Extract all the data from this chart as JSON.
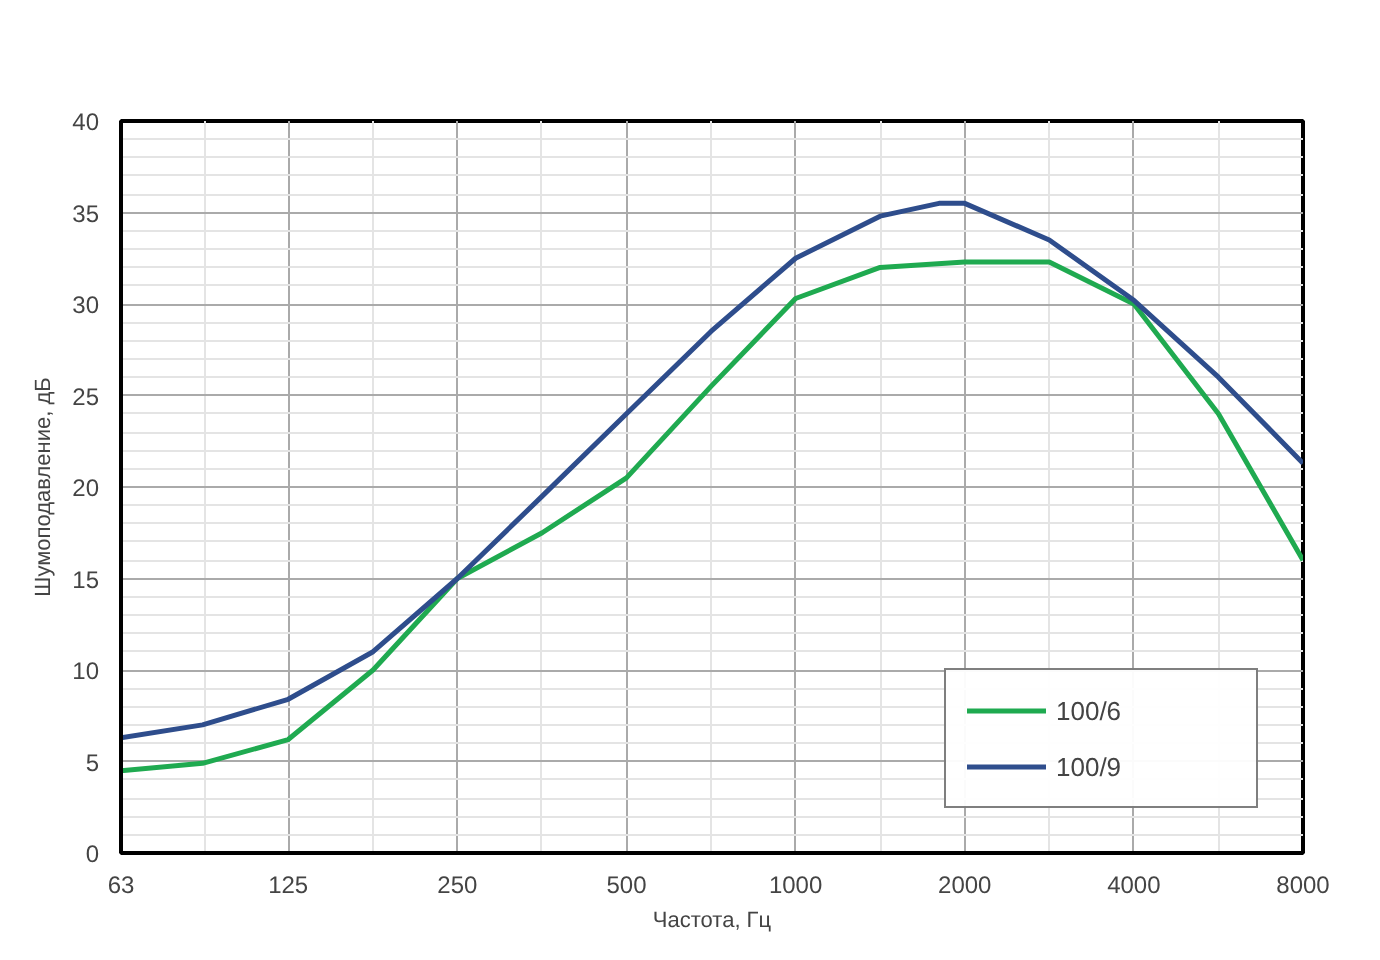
{
  "chart_data": {
    "type": "line",
    "xlabel": "Частота, Гц",
    "ylabel": "Шумоподавление, дБ",
    "log": "x",
    "xlim": [
      63,
      8000
    ],
    "xticks": [
      63,
      125,
      250,
      500,
      1000,
      2000,
      4000,
      8000
    ],
    "ylim": [
      0,
      40
    ],
    "yticks": [
      0,
      5,
      10,
      15,
      20,
      25,
      30,
      35,
      40
    ],
    "grid": true,
    "legend": "bottom right",
    "line_style": "solid",
    "marker": "none",
    "series": [
      {
        "name": "100/6",
        "color": "#1faa50",
        "x": [
          63,
          88,
          125,
          177,
          250,
          354,
          500,
          707,
          1000,
          1414,
          2000,
          2828,
          4000,
          5657,
          8000
        ],
        "values": [
          4.5,
          4.9,
          6.2,
          10,
          15,
          17.5,
          20.5,
          25.5,
          30.3,
          32,
          32.3,
          32.3,
          30,
          24,
          16
        ]
      },
      {
        "name": "100/9",
        "color": "#2e4d8c",
        "x": [
          63,
          88,
          125,
          177,
          250,
          354,
          500,
          707,
          1000,
          1414,
          1800,
          2000,
          2828,
          4000,
          5657,
          8000
        ],
        "values": [
          6.3,
          7,
          8.4,
          11,
          15,
          19.5,
          24,
          28.5,
          32.5,
          34.8,
          35.5,
          35.5,
          33.5,
          30.2,
          26,
          21.3
        ]
      }
    ]
  }
}
